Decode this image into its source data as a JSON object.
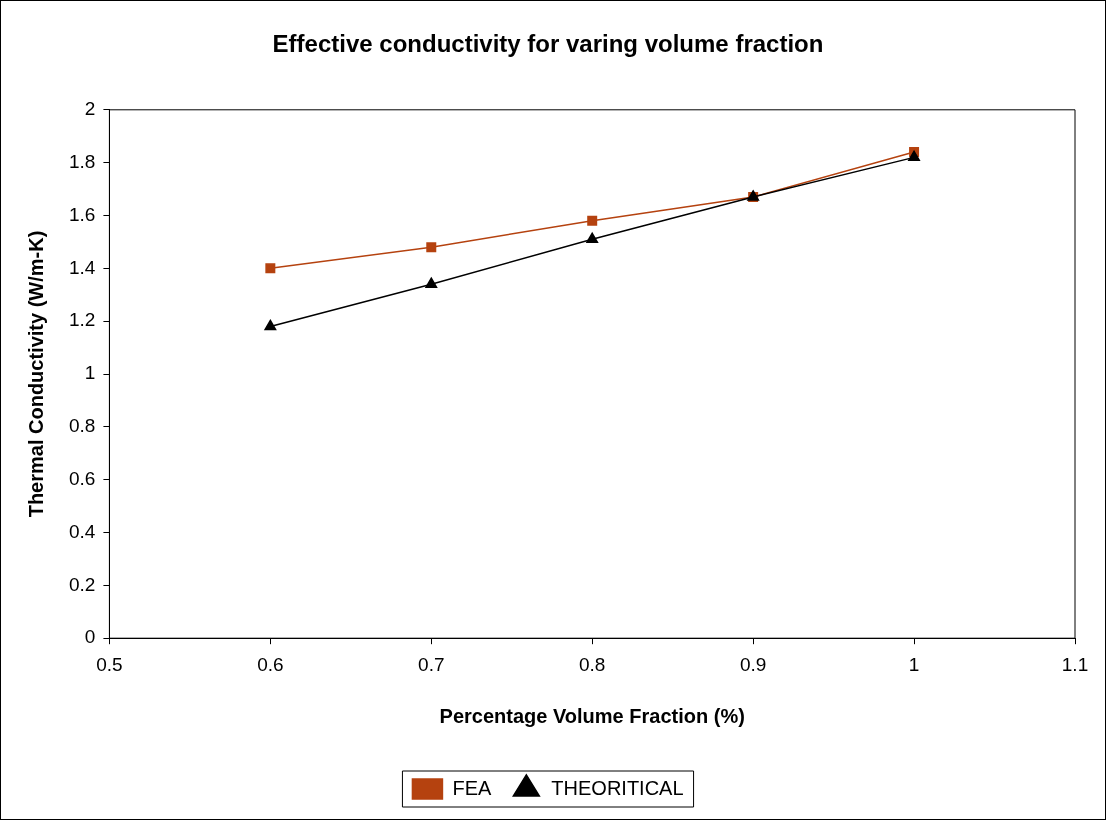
{
  "chart_data": {
    "type": "line",
    "title": "Effective conductivity for varing volume fraction",
    "xlabel": "Percentage Volume Fraction (%)",
    "ylabel": "Thermal Conductivity (W/m-K)",
    "x": [
      0.6,
      0.7,
      0.8,
      0.9,
      1
    ],
    "series": [
      {
        "name": "FEA",
        "color": "#b5420f",
        "marker": "square",
        "values": [
          1.4,
          1.48,
          1.58,
          1.67,
          1.84
        ]
      },
      {
        "name": "THEORITICAL",
        "color": "#000000",
        "marker": "triangle",
        "values": [
          1.18,
          1.34,
          1.51,
          1.67,
          1.82
        ]
      }
    ],
    "xlim": [
      0.5,
      1.1
    ],
    "xticks": [
      0.5,
      0.6,
      0.7,
      0.8,
      0.9,
      1,
      1.1
    ],
    "ylim": [
      0,
      2
    ],
    "yticks": [
      0,
      0.2,
      0.4,
      0.6,
      0.8,
      1,
      1.2,
      1.4,
      1.6,
      1.8,
      2
    ],
    "grid": false,
    "legend": "bottom",
    "line_style": "solid"
  }
}
